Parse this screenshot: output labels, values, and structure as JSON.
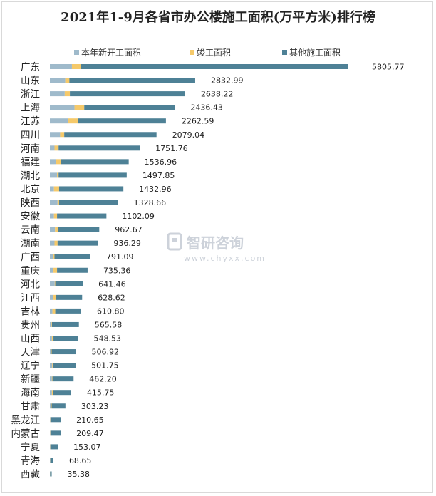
{
  "title": "2021年1-9月各省市办公楼施工面积(万平方米)排行榜",
  "watermark": {
    "name": "智研咨询",
    "url": "www.chyxx.com"
  },
  "colors": {
    "new_start": "#9fbacb",
    "completed": "#f5c96a",
    "other": "#4e8196"
  },
  "chart_data": {
    "type": "bar",
    "orientation": "horizontal",
    "stacked": true,
    "title": "2021年1-9月各省市办公楼施工面积(万平方米)排行榜",
    "legend_position": "top",
    "categories": [
      "广东",
      "山东",
      "浙江",
      "上海",
      "江苏",
      "四川",
      "河南",
      "福建",
      "湖北",
      "北京",
      "陕西",
      "安徽",
      "云南",
      "湖南",
      "广西",
      "重庆",
      "河北",
      "江西",
      "吉林",
      "贵州",
      "山西",
      "天津",
      "辽宁",
      "新疆",
      "海南",
      "甘肃",
      "黑龙江",
      "内蒙古",
      "宁夏",
      "青海",
      "西藏"
    ],
    "totals": [
      5805.77,
      2832.99,
      2638.22,
      2436.43,
      2262.59,
      2079.04,
      1751.76,
      1536.96,
      1497.85,
      1432.96,
      1328.66,
      1102.09,
      962.67,
      936.29,
      791.09,
      735.36,
      641.46,
      628.62,
      610.8,
      565.58,
      548.53,
      506.92,
      501.75,
      462.2,
      415.75,
      303.23,
      210.65,
      209.47,
      153.07,
      68.65,
      35.38
    ],
    "total_labels": [
      "5805.77",
      "2832.99",
      "2638.22",
      "2436.43",
      "2262.59",
      "2079.04",
      "1751.76",
      "1536.96",
      "1497.85",
      "1432.96",
      "1328.66",
      "1102.09",
      "962.67",
      "936.29",
      "791.09",
      "735.36",
      "641.46",
      "628.62",
      "610.80",
      "565.58",
      "548.53",
      "506.92",
      "501.75",
      "462.20",
      "415.75",
      "303.23",
      "210.65",
      "209.47",
      "153.07",
      "68.65",
      "35.38"
    ],
    "series": [
      {
        "name": "本年新开工面积",
        "values": [
          430,
          300,
          290,
          480,
          350,
          200,
          90,
          120,
          140,
          80,
          150,
          80,
          100,
          90,
          70,
          70,
          95,
          70,
          50,
          30,
          40,
          25,
          45,
          40,
          40,
          20,
          10,
          10,
          5,
          5,
          3
        ]
      },
      {
        "name": "竣工面积",
        "values": [
          180,
          80,
          100,
          190,
          200,
          80,
          80,
          90,
          30,
          100,
          30,
          60,
          60,
          60,
          20,
          70,
          10,
          50,
          55,
          10,
          30,
          10,
          10,
          10,
          20,
          15,
          5,
          5,
          5,
          3,
          2
        ]
      },
      {
        "name": "其他施工面积",
        "values": [
          5195.77,
          2452.99,
          2248.22,
          1766.43,
          1712.59,
          1799.04,
          1581.76,
          1326.96,
          1327.85,
          1252.96,
          1148.66,
          962.09,
          802.67,
          786.29,
          701.09,
          595.36,
          536.46,
          508.62,
          505.8,
          525.58,
          478.53,
          471.92,
          446.75,
          412.2,
          355.75,
          268.23,
          195.65,
          194.47,
          143.07,
          60.65,
          30.38
        ]
      }
    ]
  }
}
